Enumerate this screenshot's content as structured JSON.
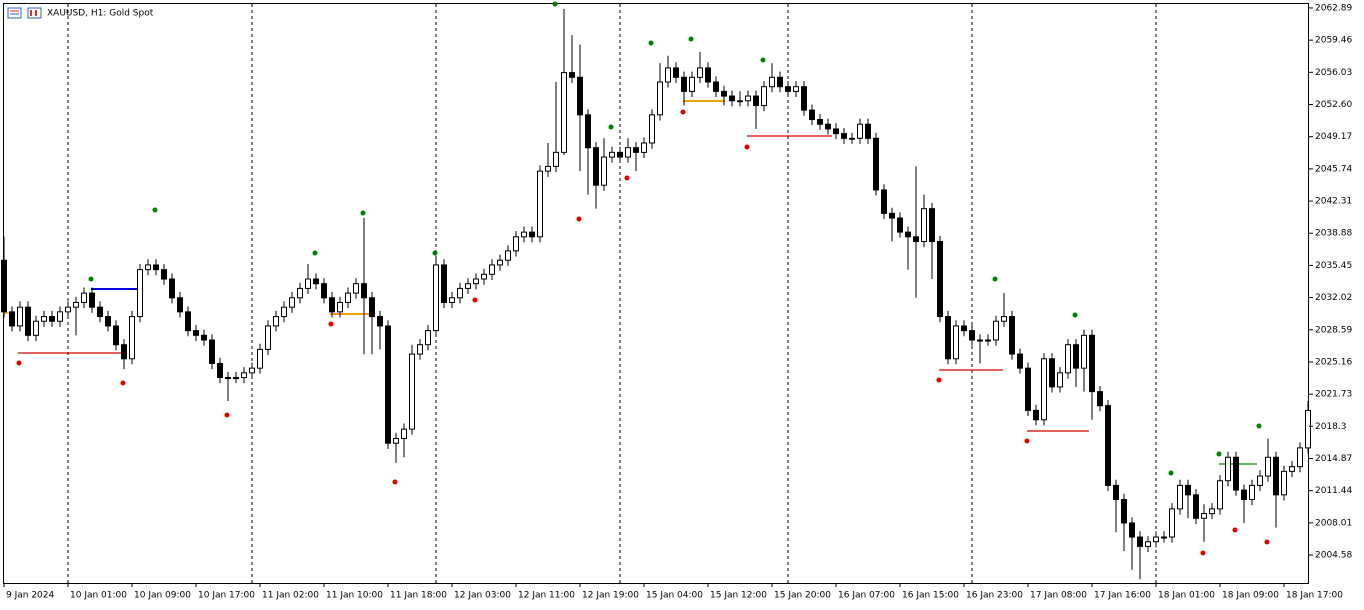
{
  "chart_data": {
    "type": "candlestick",
    "title": "XAUUSD, H1:  Gold Spot",
    "categories": [
      "9 Jan 2024",
      null,
      null,
      null,
      null,
      null,
      null,
      null,
      "10 Jan 01:00",
      null,
      null,
      null,
      null,
      null,
      null,
      null,
      "10 Jan 09:00",
      null,
      null,
      null,
      null,
      null,
      null,
      null,
      "10 Jan 17:00",
      null,
      null,
      null,
      null,
      null,
      null,
      null,
      "11 Jan 02:00",
      null,
      null,
      null,
      null,
      null,
      null,
      null,
      "11 Jan 10:00",
      null,
      null,
      null,
      null,
      null,
      null,
      null,
      "11 Jan 18:00",
      null,
      null,
      null,
      null,
      null,
      null,
      null,
      "12 Jan 03:00",
      null,
      null,
      null,
      null,
      null,
      null,
      null,
      "12 Jan 11:00",
      null,
      null,
      null,
      null,
      null,
      null,
      null,
      "12 Jan 19:00",
      null,
      null,
      null,
      null,
      null,
      null,
      null,
      "15 Jan 04:00",
      null,
      null,
      null,
      null,
      null,
      null,
      null,
      "15 Jan 12:00",
      null,
      null,
      null,
      null,
      null,
      null,
      null,
      "15 Jan 20:00",
      null,
      null,
      null,
      null,
      null,
      null,
      null,
      "16 Jan 07:00",
      null,
      null,
      null,
      null,
      null,
      null,
      null,
      "16 Jan 15:00",
      null,
      null,
      null,
      null,
      null,
      null,
      null,
      "16 Jan 23:00",
      null,
      null,
      null,
      null,
      null,
      null,
      null,
      "17 Jan 08:00",
      null,
      null,
      null,
      null,
      null,
      null,
      null,
      "17 Jan 16:00",
      null,
      null,
      null,
      null,
      null,
      null,
      null,
      "18 Jan 01:00",
      null,
      null,
      null,
      null,
      null,
      null,
      null,
      "18 Jan 09:00",
      null,
      null,
      null,
      null,
      null,
      null,
      null,
      "18 Jan 17:00",
      null,
      null,
      null
    ],
    "open": [
      2036,
      2030.5,
      2029,
      2031,
      2028,
      2029.5,
      2030,
      2029.5,
      2030.5,
      2031,
      2031.5,
      2032.5,
      2031,
      2030,
      2029,
      2027,
      2025.5,
      2030,
      2035,
      2035.5,
      2035,
      2034,
      2032,
      2030.5,
      2028.5,
      2028,
      2027.5,
      2025,
      2023.5,
      2023.5,
      2023.5,
      2024,
      2024.5,
      2026.5,
      2029,
      2030,
      2031,
      2032,
      2033,
      2034,
      2033.5,
      2032,
      2030.5,
      2031.5,
      2032.5,
      2033.5,
      2032,
      2030,
      2029,
      2016.5,
      2017,
      2018,
      2026,
      2027,
      2028.5,
      2035.5,
      2031.5,
      2032,
      2033,
      2033.5,
      2034,
      2034.5,
      2035.5,
      2036,
      2037,
      2038.5,
      2039,
      2038.5,
      2045.5,
      2046,
      2047.5,
      2056,
      2055.5,
      2051.5,
      2048,
      2044,
      2047,
      2047.5,
      2047,
      2048,
      2047.5,
      2048.5,
      2051.5,
      2055,
      2056.5,
      2055.5,
      2054,
      2055.5,
      2056.5,
      2055,
      2054,
      2053.5,
      2053,
      2053,
      2053.5,
      2052.5,
      2054.5,
      2055.5,
      2054.5,
      2054,
      2054.5,
      2052,
      2051,
      2050.5,
      2050,
      2049.5,
      2049,
      2049,
      2050.5,
      2049,
      2043.5,
      2041,
      2040.5,
      2039,
      2038.5,
      2038,
      2041.5,
      2038,
      2030,
      2025.5,
      2029,
      2028.5,
      2027.5,
      2027.5,
      2027.5,
      2029.5,
      2030,
      2026,
      2024.5,
      2020,
      2019,
      2025.5,
      2022.5,
      2024,
      2027,
      2024.5,
      2028,
      2022,
      2020.5,
      2012,
      2010.5,
      2008,
      2006.5,
      2005.5,
      2006,
      2006.5,
      2006.5,
      2009.5,
      2012,
      2011,
      2008.5,
      2009,
      2009.5,
      2012.5,
      2015,
      2011.5,
      2010.5,
      2012,
      2013,
      2015,
      2011,
      2013.5,
      2014,
      2016
    ],
    "high": [
      2038.5,
      2031.1,
      2031.6,
      2031.6,
      2030.1,
      2030.6,
      2030.6,
      2031.1,
      2031.6,
      2032.1,
      2033.1,
      2033.1,
      2031.6,
      2030.6,
      2029.6,
      2027.6,
      2030.6,
      2035.6,
      2036.1,
      2036.1,
      2035.6,
      2034.6,
      2032.6,
      2031.1,
      2029.1,
      2028.6,
      2028.1,
      2025.6,
      2024.1,
      2024.1,
      2024.6,
      2025.1,
      2027.1,
      2029.6,
      2030.6,
      2031.6,
      2032.6,
      2033.6,
      2035.6,
      2034.6,
      2034.1,
      2032.6,
      2032.1,
      2033.1,
      2034.1,
      2040.5,
      2032.6,
      2030.6,
      2029.6,
      2017.6,
      2018.6,
      2027,
      2027.6,
      2029.1,
      2036.5,
      2036.1,
      2032.6,
      2033.6,
      2034.1,
      2034.6,
      2035.1,
      2036.1,
      2036.6,
      2037.6,
      2039.1,
      2039.6,
      2039.6,
      2046.1,
      2048.5,
      2055,
      2062.8,
      2060,
      2059,
      2052.1,
      2048.6,
      2049,
      2048.1,
      2048.1,
      2049,
      2048.6,
      2049.1,
      2052.1,
      2057,
      2057.8,
      2057.1,
      2056.1,
      2056.1,
      2058.2,
      2057.1,
      2055.6,
      2054.6,
      2054.1,
      2054,
      2054.1,
      2054.1,
      2055.1,
      2057,
      2056.1,
      2055.1,
      2055.1,
      2055.1,
      2052.6,
      2051.6,
      2051.1,
      2050.6,
      2050.1,
      2049.6,
      2051.1,
      2051.1,
      2049.6,
      2044.1,
      2041.6,
      2041.1,
      2039.6,
      2046,
      2043,
      2042.1,
      2038.6,
      2030.6,
      2029.6,
      2029.6,
      2029.1,
      2028.1,
      2028.1,
      2030.1,
      2032.5,
      2030.6,
      2026.6,
      2025.1,
      2020.6,
      2026.1,
      2026.1,
      2024.6,
      2027.6,
      2027.6,
      2028.6,
      2028.6,
      2022.6,
      2021.1,
      2012.6,
      2011.1,
      2008.6,
      2007.1,
      2006.6,
      2007.1,
      2007.1,
      2010.1,
      2012.6,
      2012.6,
      2011.6,
      2010,
      2010.1,
      2013.1,
      2015.6,
      2015.6,
      2012.1,
      2012.6,
      2013.6,
      2017,
      2015.6,
      2014.1,
      2014.6,
      2016.6,
      2021
    ],
    "low": [
      2029.9,
      2028.4,
      2028.4,
      2027.4,
      2027.4,
      2028.9,
      2028.9,
      2028.9,
      2029.9,
      2028,
      2030.9,
      2030.4,
      2029.4,
      2028.4,
      2026.4,
      2024.4,
      2024.9,
      2029.4,
      2034.4,
      2034.4,
      2033.4,
      2031.4,
      2029.9,
      2027.9,
      2027.4,
      2026.9,
      2024.4,
      2022.9,
      2021,
      2022.9,
      2022.9,
      2023.4,
      2023.9,
      2025.9,
      2028.4,
      2029.4,
      2030.4,
      2031.4,
      2032.4,
      2032.9,
      2031.4,
      2029.9,
      2029.9,
      2030.9,
      2031.9,
      2026,
      2026,
      2026.5,
      2015.9,
      2014.4,
      2015,
      2017.4,
      2025.4,
      2026.4,
      2027.9,
      2030.9,
      2030.9,
      2031.4,
      2032.4,
      2032.9,
      2033.4,
      2033.9,
      2034.9,
      2035.4,
      2036.4,
      2037.9,
      2037.9,
      2037.9,
      2044.9,
      2045.4,
      2047.2,
      2054.9,
      2045.5,
      2043,
      2041.5,
      2043.4,
      2046.4,
      2046.4,
      2046.4,
      2045.5,
      2046.9,
      2047.9,
      2050.9,
      2054.4,
      2054.9,
      2052.5,
      2053.4,
      2054.9,
      2054.4,
      2053.4,
      2052.5,
      2052.4,
      2052.4,
      2052.4,
      2050,
      2051.9,
      2053.9,
      2053.9,
      2053.4,
      2053.4,
      2051.4,
      2050.4,
      2049.9,
      2049.4,
      2048.9,
      2048.4,
      2048.4,
      2048.4,
      2048.4,
      2042.9,
      2040.4,
      2038,
      2038.4,
      2035,
      2032,
      2037.4,
      2034,
      2029.4,
      2024.9,
      2024.9,
      2027.9,
      2026.9,
      2025,
      2026.9,
      2026.9,
      2028.9,
      2025.4,
      2023.9,
      2019.4,
      2018.4,
      2018.4,
      2021.9,
      2021.9,
      2023.4,
      2022.5,
      2022,
      2019,
      2019.9,
      2011.4,
      2007,
      2005,
      2003,
      2002,
      2004.9,
      2005.4,
      2005.9,
      2005.9,
      2008.9,
      2008.5,
      2007.9,
      2006,
      2008.4,
      2008.9,
      2011.9,
      2010.9,
      2008,
      2009.9,
      2011.4,
      2012.4,
      2007.5,
      2010.4,
      2012.9,
      2013.4,
      2015.4
    ],
    "close": [
      2030.5,
      2029,
      2031,
      2028,
      2029.5,
      2030,
      2029.5,
      2030.5,
      2031,
      2031.5,
      2032.5,
      2031,
      2030,
      2029,
      2027,
      2025.5,
      2030,
      2035,
      2035.5,
      2035,
      2034,
      2032,
      2030.5,
      2028.5,
      2028,
      2027.5,
      2025,
      2023.5,
      2023.5,
      2023.5,
      2024,
      2024.5,
      2026.5,
      2029,
      2030,
      2031,
      2032,
      2033,
      2034,
      2033.5,
      2032,
      2030.5,
      2031.5,
      2032.5,
      2033.5,
      2032,
      2030,
      2029,
      2016.5,
      2017,
      2018,
      2026,
      2027,
      2028.5,
      2035.5,
      2031.5,
      2032,
      2033,
      2033.5,
      2034,
      2034.5,
      2035.5,
      2036,
      2037,
      2038.5,
      2039,
      2038.5,
      2045.5,
      2046,
      2047.5,
      2056,
      2055.5,
      2051.5,
      2048,
      2044,
      2047,
      2047.5,
      2047,
      2048,
      2047.5,
      2048.5,
      2051.5,
      2055,
      2056.5,
      2055.5,
      2054,
      2055.5,
      2056.5,
      2055,
      2054,
      2053.5,
      2053,
      2053,
      2053.5,
      2052.5,
      2054.5,
      2055.5,
      2054.5,
      2054,
      2054.5,
      2052,
      2051,
      2050.5,
      2050,
      2049.5,
      2049,
      2049,
      2050.5,
      2049,
      2043.5,
      2041,
      2040.5,
      2039,
      2038.5,
      2038,
      2041.5,
      2038,
      2030,
      2025.5,
      2029,
      2028.5,
      2027.5,
      2027.5,
      2027.5,
      2029.5,
      2030,
      2026,
      2024.5,
      2020,
      2019,
      2025.5,
      2022.5,
      2024,
      2027,
      2024.5,
      2028,
      2022,
      2020.5,
      2012,
      2010.5,
      2008,
      2006.5,
      2005.5,
      2006,
      2006.5,
      2006.5,
      2009.5,
      2012,
      2011,
      2008.5,
      2009,
      2009.5,
      2012.5,
      2015,
      2011.5,
      2010.5,
      2012,
      2013,
      2015,
      2011,
      2013.5,
      2014,
      2016,
      2020
    ],
    "up_color": "#ffffff",
    "down_color": "#000000",
    "outline_color": "#000000",
    "ylim": [
      2001.6,
      2063.42
    ],
    "yticks": [
      2004.58,
      2008.01,
      2011.44,
      2014.87,
      2018.3,
      2021.73,
      2025.16,
      2028.59,
      2032.02,
      2035.45,
      2038.88,
      2042.31,
      2045.74,
      2049.17,
      {
        "value": 2052.6,
        "label": "2052.60"
      },
      2056.03,
      2059.46,
      2062.89
    ]
  }
}
